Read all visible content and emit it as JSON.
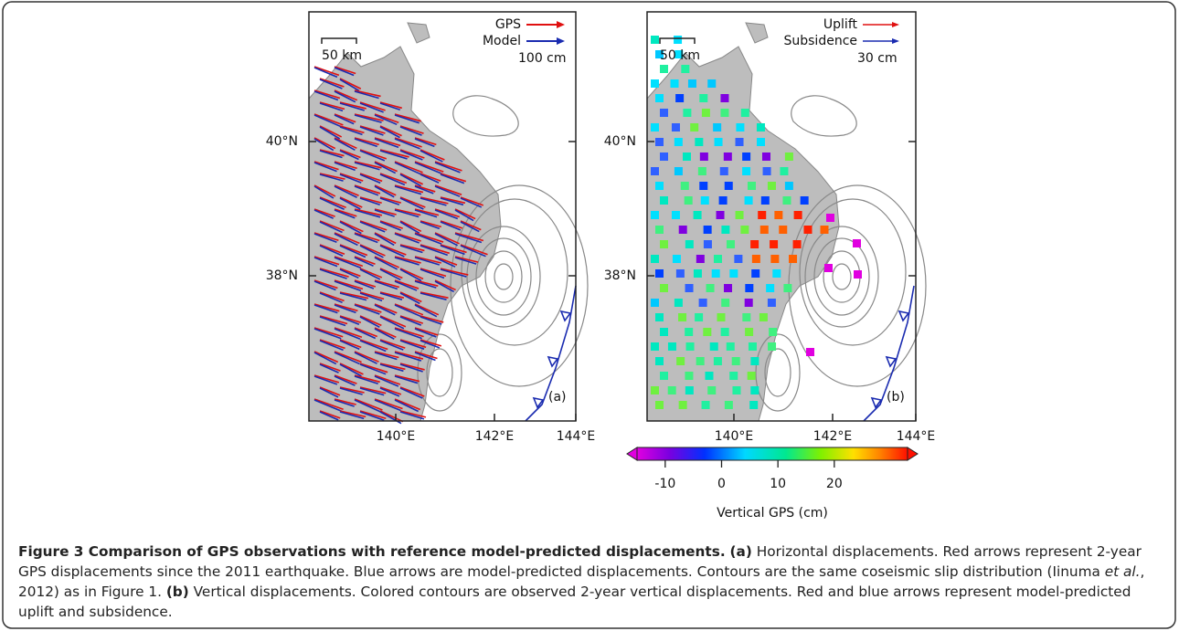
{
  "panel_a": {
    "label": "(a)",
    "scale": "50 km",
    "legend": [
      "GPS",
      "Model"
    ],
    "legend_scale": "100 cm",
    "lat_labels": [
      "40°N",
      "38°N"
    ],
    "lon_labels": [
      "140°E",
      "142°E",
      "144°E"
    ]
  },
  "panel_b": {
    "label": "(b)",
    "scale": "50 km",
    "legend": [
      "Uplift",
      "Subsidence"
    ],
    "legend_scale": "30 cm",
    "lat_labels": [
      "40°N",
      "38°N"
    ],
    "lon_labels": [
      "140°E",
      "142°E",
      "144°E"
    ]
  },
  "colorbar": {
    "label": "Vertical GPS (cm)",
    "lim": [
      -15,
      33
    ],
    "ticks": [
      -10,
      0,
      10,
      20
    ]
  },
  "caption": {
    "title": "Figure 3 Comparison of GPS observations with reference model-predicted displacements.",
    "a_label": "(a)",
    "a_text": "Horizontal displacements. Red arrows represent 2-year GPS displacements since the 2011 earthquake. Blue arrows are model-predicted displacements. Contours are the same coseismic slip distribution (Iinuma ",
    "et_al": "et al.",
    "a_text_end": ", 2012) as in Figure 1.",
    "b_label": "(b)",
    "b_text": "Vertical displacements. Colored contours are observed 2-year vertical displacements. Red and blue arrows represent model-predicted uplift and subsidence."
  }
}
